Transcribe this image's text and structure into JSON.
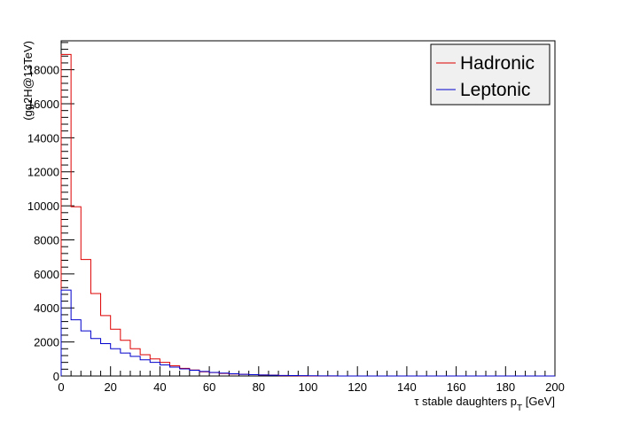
{
  "chart_data": {
    "type": "histogram",
    "xlabel_main": "τ stable daughters p",
    "xlabel_sub": "T",
    "xlabel_unit": " [GeV]",
    "ylabel": "(gg2H@13TeV)",
    "xlim": [
      0,
      200
    ],
    "ylim": [
      0,
      19700
    ],
    "bin_width": 4,
    "x_ticks": [
      "0",
      "20",
      "40",
      "60",
      "80",
      "100",
      "120",
      "140",
      "160",
      "180",
      "200"
    ],
    "y_ticks": [
      "0",
      "2000",
      "4000",
      "6000",
      "8000",
      "10000",
      "12000",
      "14000",
      "16000",
      "18000"
    ],
    "legend_position": "top-right",
    "series": [
      {
        "name": "Hadronic",
        "color": "#dd0000",
        "values": [
          18900,
          9950,
          6850,
          4850,
          3550,
          2750,
          2100,
          1600,
          1250,
          1000,
          800,
          600,
          450,
          350,
          250,
          200,
          150,
          120,
          100,
          80,
          60,
          50,
          20,
          10,
          5,
          0,
          0,
          0,
          0,
          0,
          0,
          0,
          0,
          0,
          0,
          0,
          0,
          0,
          0,
          0,
          0,
          0,
          0,
          0,
          0,
          0,
          0,
          0,
          0,
          0
        ]
      },
      {
        "name": "Leptonic",
        "color": "#0000cc",
        "values": [
          5050,
          3300,
          2650,
          2200,
          1900,
          1600,
          1350,
          1150,
          950,
          800,
          650,
          520,
          420,
          340,
          270,
          210,
          170,
          130,
          100,
          80,
          60,
          45,
          35,
          25,
          18,
          12,
          8,
          5,
          3,
          2,
          1,
          1,
          0,
          0,
          0,
          0,
          0,
          0,
          0,
          0,
          0,
          0,
          0,
          0,
          0,
          0,
          0,
          0,
          0,
          0
        ]
      }
    ]
  }
}
